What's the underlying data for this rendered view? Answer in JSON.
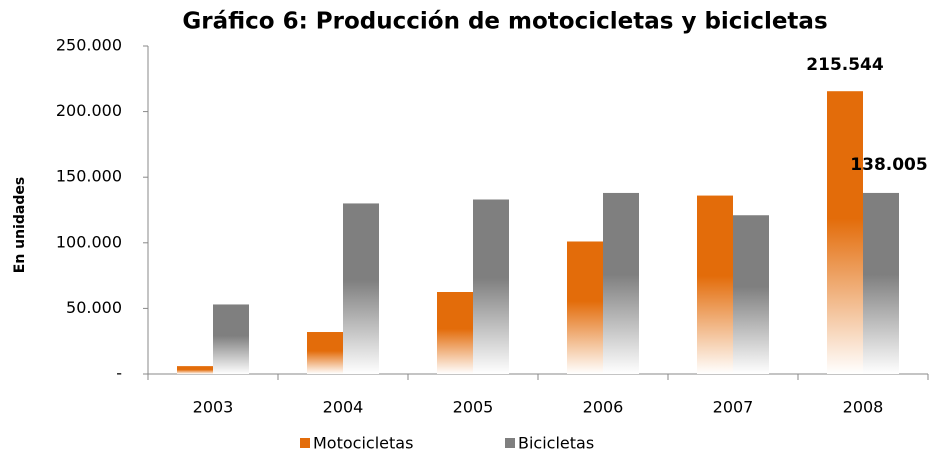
{
  "chart_data": {
    "type": "bar",
    "title": "Gráfico 6: Producción de motocicletas y bicicletas",
    "y_axis_label": "En unidades",
    "categories": [
      "2003",
      "2004",
      "2005",
      "2006",
      "2007",
      "2008"
    ],
    "series": [
      {
        "name": "Motocicletas",
        "color": "#e36c0a",
        "values": [
          6000,
          32000,
          62500,
          101000,
          136000,
          215544
        ],
        "value_labels": [
          null,
          null,
          null,
          null,
          null,
          "215.544"
        ]
      },
      {
        "name": "Bicicletas",
        "color": "#7f7f7f",
        "values": [
          53000,
          130000,
          133000,
          138000,
          121000,
          138005
        ],
        "value_labels": [
          null,
          null,
          null,
          null,
          null,
          "138.005"
        ]
      }
    ],
    "ylim": [
      0,
      250000
    ],
    "yticks": [
      {
        "value": 0,
        "label": "-"
      },
      {
        "value": 50000,
        "label": "50.000"
      },
      {
        "value": 100000,
        "label": "100.000"
      },
      {
        "value": 150000,
        "label": "150.000"
      },
      {
        "value": 200000,
        "label": "200.000"
      },
      {
        "value": 250000,
        "label": "250.000"
      }
    ],
    "grid": false,
    "legend": "bottom"
  }
}
